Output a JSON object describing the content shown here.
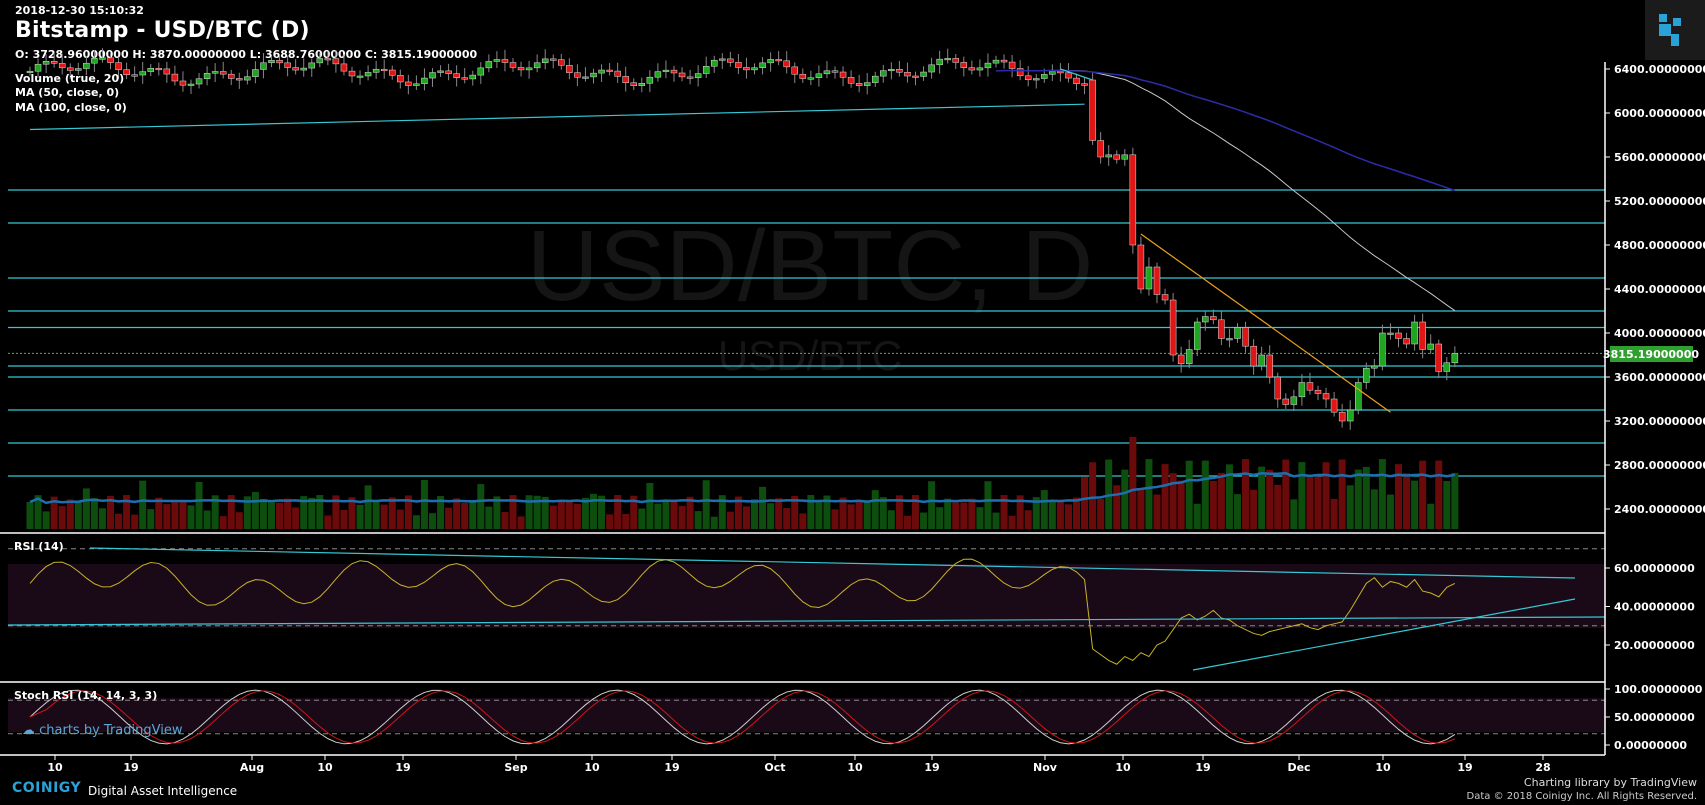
{
  "header": {
    "timestamp": "2018-12-30 15:10:32",
    "title": "Bitstamp - USD/BTC (D)",
    "ohlc": "O: 3728.96000000 H: 3870.00000000 L: 3688.76000000 C: 3815.19000000"
  },
  "legend": {
    "volume": "Volume (true, 20)",
    "ma50": "MA (50, close, 0)",
    "ma100": "MA (100, close, 0)",
    "rsi": "RSI (14)",
    "stoch": "Stoch RSI (14, 14, 3, 3)"
  },
  "watermark": {
    "big": "USD/BTC, D",
    "small": "USD/BTC"
  },
  "tv_badge": "charts by TradingView",
  "footer": {
    "brand": "COINIGY",
    "tagline": "Digital Asset Intelligence",
    "charting": "Charting library by  TradingView",
    "copyright": "Data © 2018  Coinigy Inc. All Rights Reserved."
  },
  "colors": {
    "up": "#1fa51f",
    "down": "#e01515",
    "cyan": "#35c8d4",
    "ma50": "#c8c8c8",
    "ma100": "#2c2ca8",
    "rsi_line": "#c8b428",
    "stoch_k": "#d0d0d0",
    "stoch_d": "#d01515",
    "price_badge": "#2fa02f",
    "accent": "#2aa2d8"
  },
  "chart_data": [
    {
      "type": "candlestick",
      "panel": "price",
      "y_ticks": [
        "6400.00000000",
        "6000.00000000",
        "5600.00000000",
        "5200.00000000",
        "4800.00000000",
        "4400.00000000",
        "4000.00000000",
        "3600.00000000",
        "3200.00000000",
        "2800.00000000",
        "2400.00000000"
      ],
      "ylim": [
        2200,
        6500
      ],
      "last_price_label": "3815.19000000",
      "last_price": 3815.19,
      "x_ticks": [
        "10",
        "19",
        "Aug",
        "10",
        "19",
        "Sep",
        "10",
        "19",
        "Oct",
        "10",
        "19",
        "Nov",
        "10",
        "19",
        "Dec",
        "10",
        "19",
        "28"
      ],
      "horizontal_levels": [
        5300,
        5000,
        4500,
        4200,
        4050,
        3700,
        3600,
        3300,
        3000,
        2700
      ],
      "trendlines": [
        {
          "from": [
            "2018-07-05",
            5850
          ],
          "to": [
            "2018-11-13",
            6080
          ],
          "color": "cyan"
        },
        {
          "from": [
            "2018-11-10",
            6400
          ],
          "to": [
            "2018-11-14",
            6300
          ],
          "color": "cyan"
        },
        {
          "from": [
            "2018-11-20",
            4900
          ],
          "to": [
            "2018-12-21",
            3280
          ],
          "color": "orange"
        }
      ],
      "segments": [
        {
          "start": "2018-07-05",
          "end": "2018-11-13",
          "base": 6380,
          "amp": 120
        },
        {
          "start": "2018-11-14",
          "end": "2018-12-30",
          "closes": [
            5750,
            5600,
            5620,
            5580,
            5620,
            4800,
            4400,
            4600,
            4350,
            4300,
            3800,
            3720,
            3850,
            4100,
            4150,
            4120,
            3950,
            3950,
            4050,
            3880,
            3700,
            3800,
            3600,
            3400,
            3350,
            3420,
            3550,
            3480,
            3450,
            3400,
            3280,
            3200,
            3300,
            3550,
            3680,
            3700,
            4000,
            4000,
            3950,
            3900,
            4100,
            3850,
            3900,
            3650,
            3730,
            3815
          ],
          "opens": [
            6300,
            5750,
            5600,
            5620,
            5580,
            5620,
            4800,
            4400,
            4600,
            4350,
            4300,
            3800,
            3720,
            3850,
            4100,
            4150,
            4120,
            3950,
            3950,
            4050,
            3880,
            3700,
            3800,
            3600,
            3400,
            3350,
            3420,
            3550,
            3480,
            3450,
            3400,
            3280,
            3200,
            3300,
            3550,
            3680,
            3700,
            4000,
            4000,
            3950,
            3900,
            4100,
            3850,
            3900,
            3650,
            3729
          ]
        }
      ]
    },
    {
      "type": "bar",
      "panel": "volume",
      "series": [
        {
          "name": "Volume (true, 20)"
        }
      ]
    },
    {
      "type": "line",
      "panel": "rsi",
      "y_ticks": [
        "60.00000000",
        "40.00000000",
        "20.00000000"
      ],
      "ylim": [
        0,
        80
      ],
      "levels": [
        70,
        30
      ],
      "recent_values": [
        18,
        15,
        12,
        10,
        14,
        12,
        16,
        14,
        20,
        22,
        28,
        34,
        36,
        33,
        35,
        38,
        34,
        33,
        30,
        28,
        26,
        25,
        27,
        28,
        29,
        30,
        31,
        29,
        28,
        30,
        31,
        32,
        38,
        45,
        52,
        55,
        50,
        53,
        52,
        50,
        54,
        48,
        47,
        45,
        50,
        52
      ]
    },
    {
      "type": "line",
      "panel": "stoch_rsi",
      "y_ticks": [
        "100.00000000",
        "50.00000000",
        "0.00000000"
      ],
      "ylim": [
        -10,
        110
      ],
      "levels": [
        80,
        20
      ]
    }
  ]
}
